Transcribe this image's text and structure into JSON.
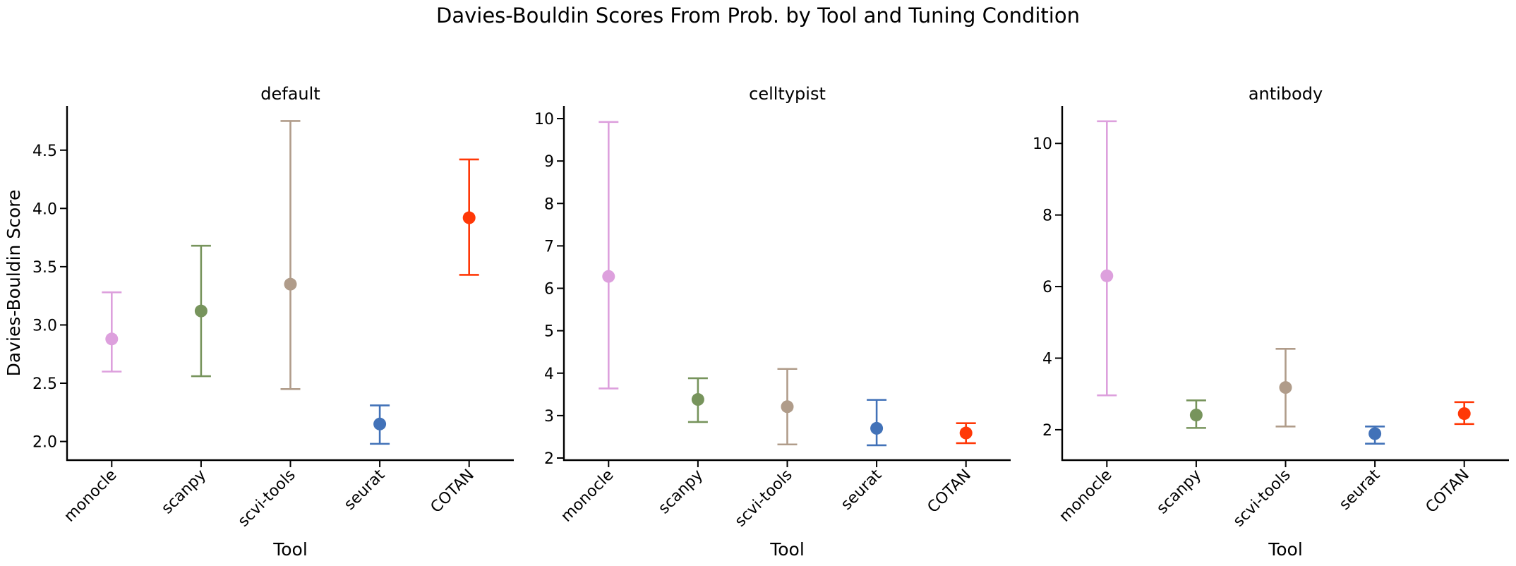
{
  "suptitle": "Davies-Bouldin Scores From Prob. by Tool and Tuning Condition",
  "chart_data": [
    {
      "type": "scatter",
      "title": "default",
      "xlabel": "Tool",
      "ylabel": "Davies-Bouldin Score",
      "categories": [
        "monocle",
        "scanpy",
        "scvi-tools",
        "seurat",
        "COTAN"
      ],
      "colors": [
        "#dda0dd",
        "#77945c",
        "#b09c8a",
        "#4272b8",
        "#ff3807"
      ],
      "values": [
        2.88,
        3.12,
        3.35,
        2.15,
        3.92
      ],
      "error_low": [
        2.6,
        2.56,
        2.45,
        1.98,
        3.43
      ],
      "error_high": [
        3.28,
        3.68,
        4.75,
        2.31,
        4.42
      ],
      "ylim": [
        1.84,
        4.88
      ],
      "yticks": [
        2.0,
        2.5,
        3.0,
        3.5,
        4.0,
        4.5
      ],
      "ytick_labels": [
        "2.0",
        "2.5",
        "3.0",
        "3.5",
        "4.0",
        "4.5"
      ],
      "grid": false
    },
    {
      "type": "scatter",
      "title": "celltypist",
      "xlabel": "Tool",
      "ylabel": "",
      "categories": [
        "monocle",
        "scanpy",
        "scvi-tools",
        "seurat",
        "COTAN"
      ],
      "colors": [
        "#dda0dd",
        "#77945c",
        "#b09c8a",
        "#4272b8",
        "#ff3807"
      ],
      "values": [
        6.28,
        3.38,
        3.21,
        2.7,
        2.59
      ],
      "error_low": [
        3.64,
        2.85,
        2.32,
        2.3,
        2.35
      ],
      "error_high": [
        9.92,
        3.88,
        4.1,
        3.37,
        2.82
      ],
      "ylim": [
        1.95,
        10.3
      ],
      "yticks": [
        2,
        3,
        4,
        5,
        6,
        7,
        8,
        9,
        10
      ],
      "ytick_labels": [
        "2",
        "3",
        "4",
        "5",
        "6",
        "7",
        "8",
        "9",
        "10"
      ],
      "grid": false
    },
    {
      "type": "scatter",
      "title": "antibody",
      "xlabel": "Tool",
      "ylabel": "",
      "categories": [
        "monocle",
        "scanpy",
        "scvi-tools",
        "seurat",
        "COTAN"
      ],
      "colors": [
        "#dda0dd",
        "#77945c",
        "#b09c8a",
        "#4272b8",
        "#ff3807"
      ],
      "values": [
        6.3,
        2.41,
        3.18,
        1.89,
        2.45
      ],
      "error_low": [
        2.96,
        2.05,
        2.09,
        1.61,
        2.16
      ],
      "error_high": [
        10.62,
        2.82,
        4.26,
        2.09,
        2.77
      ],
      "ylim": [
        1.15,
        11.05
      ],
      "yticks": [
        2,
        4,
        6,
        8,
        10
      ],
      "ytick_labels": [
        "2",
        "4",
        "6",
        "8",
        "10"
      ],
      "grid": false
    }
  ]
}
